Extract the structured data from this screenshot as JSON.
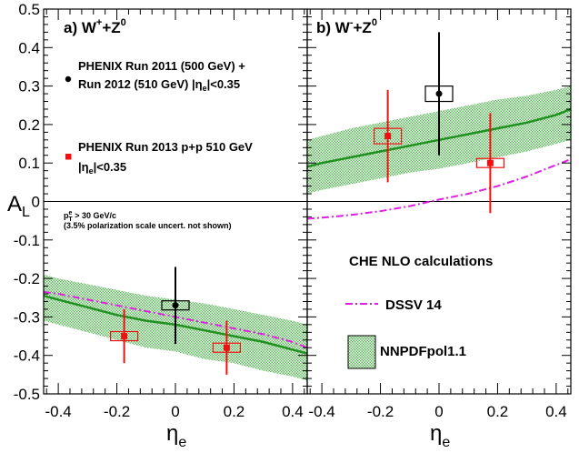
{
  "figure": {
    "ylabel_main": "A",
    "ylabel_sub": "L",
    "xlabel_main": "η",
    "xlabel_sub": "e"
  },
  "chart_data": [
    {
      "type": "scatter",
      "panel_label": "a) W",
      "panel_label_sup": "+",
      "panel_label_tail": "+Z",
      "panel_label_sup2": "0",
      "xlim": [
        -0.45,
        0.45
      ],
      "ylim": [
        -0.5,
        0.5
      ],
      "x_ticks": [
        -0.4,
        -0.2,
        0,
        0.2,
        0.4
      ],
      "x_tick_labels": [
        "-0.4",
        "-0.2",
        "0",
        "0.2",
        "0.4"
      ],
      "y_ticks": [
        -0.5,
        -0.4,
        -0.3,
        -0.2,
        -0.1,
        0,
        0.1,
        0.2,
        0.3,
        0.4,
        0.5
      ],
      "y_tick_labels": [
        "-0.5",
        "-0.4",
        "-0.3",
        "-0.2",
        "-0.1",
        "0",
        "0.1",
        "0.2",
        "0.3",
        "0.4",
        "0.5"
      ],
      "grid": false,
      "series": [
        {
          "name": "PHENIX Run 2011 (500 GeV) + Run 2012 (510 GeV) |ηe|<0.35",
          "color": "#000000",
          "marker": "circle",
          "points": [
            {
              "x": 0.0,
              "y": -0.27,
              "err_low": 0.1,
              "err_high": 0.1,
              "sys": 0.01
            }
          ]
        },
        {
          "name": "PHENIX Run 2013 p+p 510 GeV |ηe|<0.35",
          "color": "#ee1111",
          "marker": "square",
          "points": [
            {
              "x": -0.175,
              "y": -0.35,
              "err_low": 0.07,
              "err_high": 0.07,
              "sys": 0.01
            },
            {
              "x": 0.175,
              "y": -0.38,
              "err_low": 0.07,
              "err_high": 0.07,
              "sys": 0.01
            }
          ]
        }
      ],
      "theory": {
        "nnpdf_central": {
          "x": [
            -0.45,
            -0.4,
            -0.3,
            -0.2,
            -0.1,
            0,
            0.1,
            0.2,
            0.3,
            0.4,
            0.45
          ],
          "y": [
            -0.245,
            -0.255,
            -0.275,
            -0.295,
            -0.31,
            -0.32,
            -0.335,
            -0.35,
            -0.365,
            -0.385,
            -0.395
          ]
        },
        "nnpdf_band": {
          "x": [
            -0.45,
            -0.4,
            -0.3,
            -0.2,
            -0.1,
            0,
            0.1,
            0.2,
            0.3,
            0.4,
            0.45
          ],
          "low": [
            -0.31,
            -0.32,
            -0.34,
            -0.36,
            -0.38,
            -0.39,
            -0.41,
            -0.42,
            -0.44,
            -0.455,
            -0.465
          ],
          "high": [
            -0.19,
            -0.2,
            -0.215,
            -0.23,
            -0.245,
            -0.255,
            -0.265,
            -0.28,
            -0.295,
            -0.31,
            -0.32
          ]
        },
        "dssv_14": {
          "x": [
            -0.45,
            -0.4,
            -0.3,
            -0.2,
            -0.1,
            0,
            0.1,
            0.2,
            0.3,
            0.4,
            0.45
          ],
          "y": [
            -0.235,
            -0.24,
            -0.255,
            -0.27,
            -0.285,
            -0.3,
            -0.315,
            -0.33,
            -0.345,
            -0.365,
            -0.38
          ]
        }
      },
      "legend": {
        "position": "top-left",
        "entry1_line1": "PHENIX Run 2011 (500 GeV) +",
        "entry1_line2_pre": "Run 2012 (510 GeV) |η",
        "entry1_line2_sub": "e",
        "entry1_line2_post": "|<0.35",
        "entry2_line1": "PHENIX Run 2013 p+p 510 GeV",
        "entry2_line2_pre": "|η",
        "entry2_line2_sub": "e",
        "entry2_line2_post": "|<0.35"
      },
      "annotations": {
        "cut_pre": "p",
        "cut_sub": "e",
        "cut_sup": "T",
        "cut_post": " > 30 GeV/c",
        "note": "(3.5% polarization scale uncert. not shown)"
      }
    },
    {
      "type": "scatter",
      "panel_label": "b) W",
      "panel_label_sup": "-",
      "panel_label_tail": "+Z",
      "panel_label_sup2": "0",
      "xlim": [
        -0.45,
        0.45
      ],
      "ylim": [
        -0.5,
        0.5
      ],
      "x_ticks": [
        -0.4,
        -0.2,
        0,
        0.2,
        0.4
      ],
      "x_tick_labels": [
        "-0.4",
        "-0.2",
        "0",
        "0.2",
        "0.4"
      ],
      "grid": false,
      "series": [
        {
          "name": "PHENIX Run 2011 (500 GeV) + Run 2012 (510 GeV) |ηe|<0.35",
          "color": "#000000",
          "marker": "circle",
          "points": [
            {
              "x": 0.0,
              "y": 0.28,
              "err_low": 0.16,
              "err_high": 0.16,
              "sys": 0.02
            }
          ]
        },
        {
          "name": "PHENIX Run 2013 p+p 510 GeV |ηe|<0.35",
          "color": "#ee1111",
          "marker": "square",
          "points": [
            {
              "x": -0.175,
              "y": 0.17,
              "err_low": 0.12,
              "err_high": 0.12,
              "sys": 0.02
            },
            {
              "x": 0.175,
              "y": 0.1,
              "err_low": 0.13,
              "err_high": 0.13,
              "sys": 0.01
            }
          ]
        }
      ],
      "theory": {
        "nnpdf_central": {
          "x": [
            -0.45,
            -0.4,
            -0.3,
            -0.2,
            -0.1,
            0,
            0.1,
            0.2,
            0.3,
            0.4,
            0.45
          ],
          "y": [
            0.09,
            0.1,
            0.115,
            0.13,
            0.145,
            0.16,
            0.175,
            0.19,
            0.205,
            0.225,
            0.24
          ]
        },
        "nnpdf_band": {
          "x": [
            -0.45,
            -0.4,
            -0.3,
            -0.2,
            -0.1,
            0,
            0.1,
            0.2,
            0.3,
            0.4,
            0.45
          ],
          "low": [
            0.02,
            0.03,
            0.045,
            0.06,
            0.075,
            0.085,
            0.1,
            0.115,
            0.13,
            0.15,
            0.16
          ],
          "high": [
            0.16,
            0.17,
            0.19,
            0.205,
            0.22,
            0.235,
            0.25,
            0.265,
            0.275,
            0.29,
            0.3
          ]
        },
        "dssv_14": {
          "x": [
            -0.45,
            -0.4,
            -0.3,
            -0.2,
            -0.1,
            0,
            0.1,
            0.2,
            0.3,
            0.4,
            0.45
          ],
          "y": [
            -0.045,
            -0.042,
            -0.035,
            -0.025,
            -0.012,
            0.005,
            0.02,
            0.04,
            0.065,
            0.095,
            0.11
          ]
        }
      },
      "legend": {
        "position": "bottom-right",
        "title": "CHE NLO calculations",
        "dssv_label": "DSSV 14",
        "nnpdf_label": "NNPDFpol1.1"
      }
    }
  ],
  "colors": {
    "band_fill": "#7fd07f",
    "central_line": "#209020",
    "dssv_line": "#dd22dd",
    "data_black": "#000000",
    "data_red": "#ee1111"
  }
}
